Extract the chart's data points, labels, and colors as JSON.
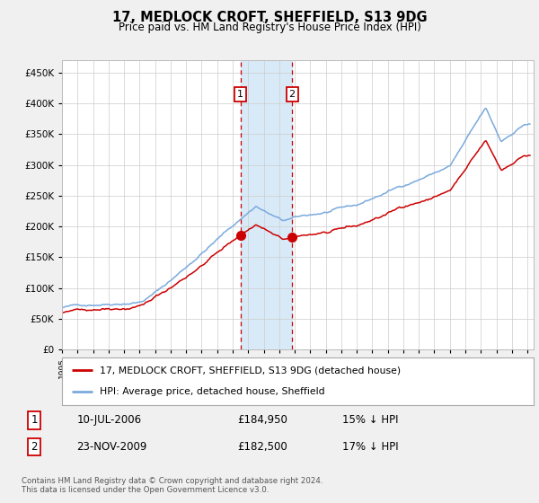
{
  "title": "17, MEDLOCK CROFT, SHEFFIELD, S13 9DG",
  "subtitle": "Price paid vs. HM Land Registry's House Price Index (HPI)",
  "legend1": "17, MEDLOCK CROFT, SHEFFIELD, S13 9DG (detached house)",
  "legend2": "HPI: Average price, detached house, Sheffield",
  "sale1_date": "10-JUL-2006",
  "sale1_price": 184950,
  "sale2_date": "23-NOV-2009",
  "sale2_price": 182500,
  "footer": "Contains HM Land Registry data © Crown copyright and database right 2024.\nThis data is licensed under the Open Government Licence v3.0.",
  "hpi_color": "#7aaadd",
  "prop_color": "#cc0000",
  "background_color": "#f0f0f0",
  "plot_bg": "#ffffff",
  "shade_color": "#d8eaf8",
  "ylim": [
    0,
    470000
  ],
  "yticks": [
    0,
    50000,
    100000,
    150000,
    200000,
    250000,
    300000,
    350000,
    400000,
    450000
  ],
  "sale1_t": 2006.5,
  "sale2_t": 2009.833
}
